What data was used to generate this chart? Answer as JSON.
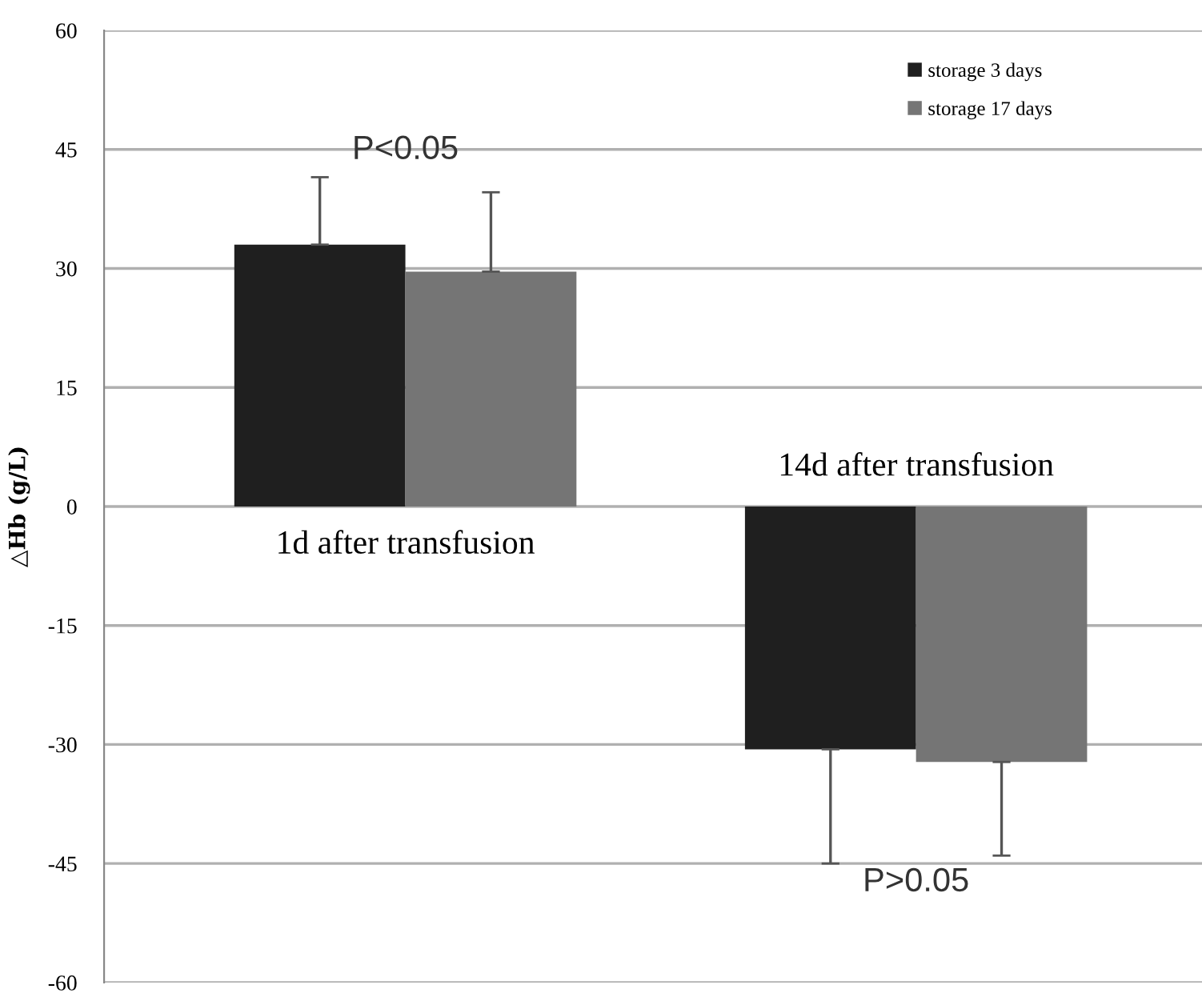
{
  "chart_data": {
    "type": "bar",
    "ylabel": "△Hb (g/L)",
    "categories": [
      "1d after transfusion",
      "14d after transfusion"
    ],
    "series": [
      {
        "name": "storage 3 days",
        "color": "#1f1f1f",
        "values": [
          33,
          -30.6
        ],
        "errors": [
          [
            33,
            41.5
          ],
          [
            -45,
            -30.6
          ]
        ]
      },
      {
        "name": "storage 17 days",
        "color": "#757575",
        "values": [
          29.6,
          -32.2
        ],
        "errors": [
          [
            29.6,
            39.6
          ],
          [
            -44,
            -32.2
          ]
        ]
      }
    ],
    "ylim": [
      -60,
      60
    ],
    "yticks": [
      -60,
      -45,
      -30,
      -15,
      0,
      15,
      30,
      45,
      60
    ],
    "grid": "y",
    "legend": "top right",
    "annotations": [
      "P<0.05",
      "P>0.05"
    ]
  }
}
